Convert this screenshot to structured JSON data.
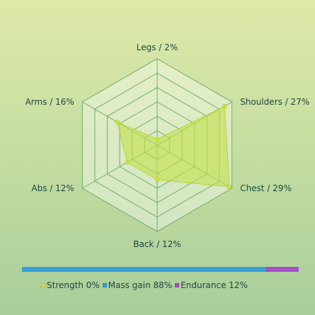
{
  "chart_data": {
    "type": "radar",
    "axes": [
      {
        "label": "Legs / 2%",
        "value": 2
      },
      {
        "label": "Shoulders / 27%",
        "value": 27
      },
      {
        "label": "Chest / 29%",
        "value": 29
      },
      {
        "label": "Back / 12%",
        "value": 12
      },
      {
        "label": "Abs / 12%",
        "value": 12
      },
      {
        "label": "Arms / 16%",
        "value": 16
      }
    ],
    "rmax": 30,
    "grid_levels": 6,
    "fill_color": "#c4e04c",
    "stroke_color": "#b5d433",
    "grid_color": "#5aa55a"
  },
  "distribution": {
    "items": [
      {
        "label": "Strength 0%",
        "value": 0,
        "color": "#d8e24a"
      },
      {
        "label": "Mass gain 88%",
        "value": 88,
        "color": "#3a9fd8"
      },
      {
        "label": "Endurance 12%",
        "value": 12,
        "color": "#a64fc9"
      }
    ]
  }
}
